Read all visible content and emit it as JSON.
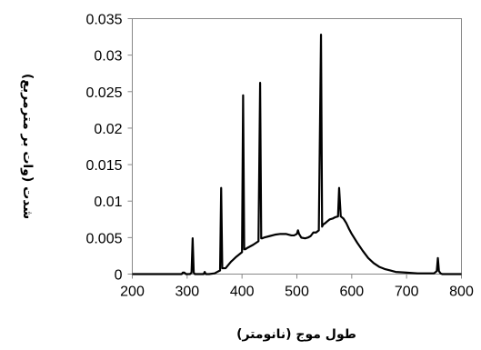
{
  "chart_data": {
    "type": "line",
    "title": "",
    "xlabel": "طول موج (نانومتر)",
    "ylabel": "شدت (وات بر مترمربع)",
    "xlim": [
      200,
      800
    ],
    "ylim": [
      0,
      0.035
    ],
    "xticks": [
      "200",
      "300",
      "400",
      "500",
      "600",
      "700",
      "800"
    ],
    "yticks": [
      "0",
      "0.005",
      "0.01",
      "0.015",
      "0.02",
      "0.025",
      "0.03",
      "0.035"
    ],
    "grid": false,
    "legend": "none",
    "line_color": "#000000",
    "series": [
      {
        "x": [
          200,
          280,
          290,
          292,
          295,
          298,
          300,
          305,
          308,
          310,
          312,
          314,
          318,
          325,
          330,
          332,
          334,
          340,
          350,
          355,
          360,
          362,
          364,
          367,
          370,
          380,
          390,
          400,
          402,
          404,
          406,
          410,
          420,
          430,
          433,
          435,
          437,
          440,
          450,
          460,
          470,
          480,
          490,
          495,
          500,
          502,
          504,
          508,
          515,
          520,
          525,
          530,
          535,
          540,
          544,
          546,
          548,
          552,
          555,
          560,
          565,
          570,
          575,
          577,
          580,
          585,
          590,
          595,
          600,
          610,
          620,
          630,
          640,
          650,
          660,
          670,
          680,
          700,
          720,
          740,
          750,
          755,
          757,
          759,
          762,
          765,
          770,
          780,
          790,
          800
        ],
        "y": [
          0,
          0,
          0,
          0.0002,
          0.0002,
          0,
          0,
          0,
          0.0002,
          0.0049,
          0.0002,
          0,
          0,
          0,
          0,
          0.0003,
          0,
          0,
          0.0001,
          0.0003,
          0.0005,
          0.0118,
          0.0008,
          0.0008,
          0.0008,
          0.0017,
          0.0024,
          0.003,
          0.0245,
          0.0034,
          0.0034,
          0.0036,
          0.004,
          0.0045,
          0.0262,
          0.0049,
          0.0049,
          0.005,
          0.0052,
          0.0054,
          0.0055,
          0.0055,
          0.0053,
          0.0053,
          0.0055,
          0.006,
          0.0055,
          0.005,
          0.0049,
          0.005,
          0.0052,
          0.0057,
          0.0057,
          0.006,
          0.0328,
          0.0065,
          0.0068,
          0.007,
          0.0072,
          0.0075,
          0.0076,
          0.0078,
          0.0079,
          0.0118,
          0.0079,
          0.0076,
          0.007,
          0.0062,
          0.0055,
          0.0043,
          0.0032,
          0.0022,
          0.0015,
          0.001,
          0.0007,
          0.0005,
          0.0003,
          0.0002,
          0.0001,
          0.0001,
          0.0001,
          0.0004,
          0.0022,
          0.0004,
          0.0001,
          0,
          0,
          0,
          0,
          0
        ]
      }
    ]
  }
}
